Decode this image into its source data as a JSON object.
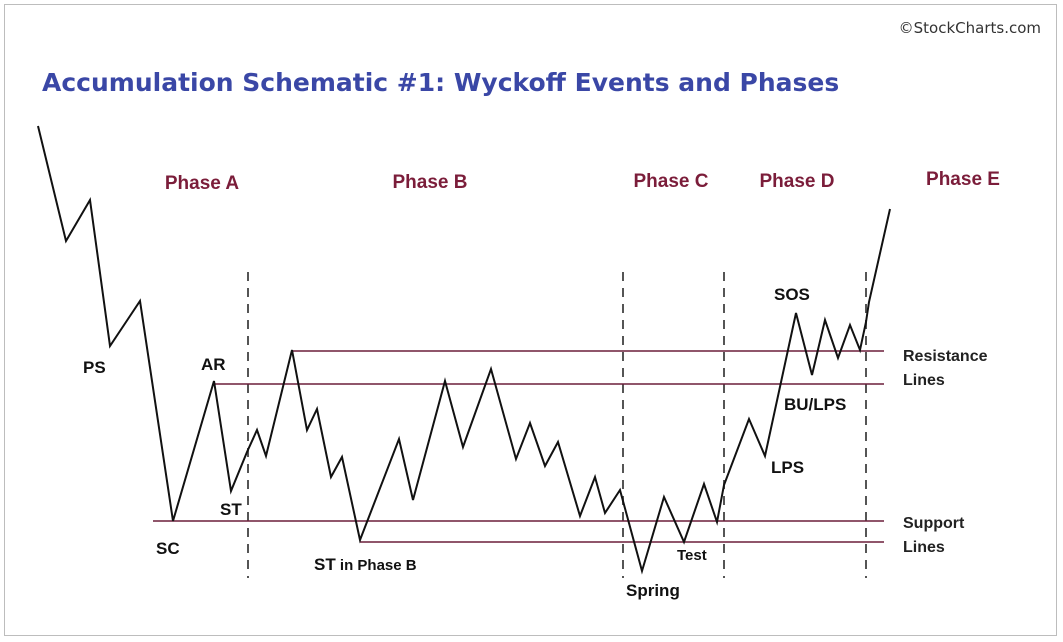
{
  "copyright": "©StockCharts.com",
  "title": "Accumulation Schematic #1: Wyckoff Events and Phases",
  "phases": {
    "a": "Phase A",
    "b": "Phase B",
    "c": "Phase C",
    "d": "Phase D",
    "e": "Phase E"
  },
  "events": {
    "ps": "PS",
    "sc": "SC",
    "ar": "AR",
    "st": "ST",
    "st_phase_b_main": "ST",
    "st_phase_b_suffix": " in Phase B",
    "spring": "Spring",
    "test": "Test",
    "lps": "LPS",
    "bu_lps": "BU/LPS",
    "sos": "SOS"
  },
  "side_labels": {
    "resistance_1": "Resistance",
    "resistance_2": "Lines",
    "support_1": "Support",
    "support_2": "Lines"
  },
  "colors": {
    "title": "#3a47a6",
    "phase": "#7b1d3a",
    "level_line": "#6b1e3a",
    "price": "#111111"
  }
}
